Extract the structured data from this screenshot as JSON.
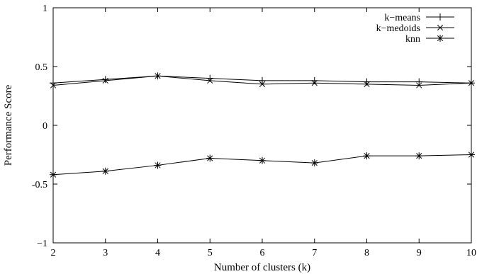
{
  "chart_data": {
    "type": "line",
    "xlabel": "Number of clusters (k)",
    "ylabel": "Performance Score",
    "x": [
      2,
      3,
      4,
      5,
      6,
      7,
      8,
      9,
      10
    ],
    "xlim": [
      2,
      10
    ],
    "ylim": [
      -1,
      1
    ],
    "xticks": [
      "2",
      "3",
      "4",
      "5",
      "6",
      "7",
      "8",
      "9",
      "10"
    ],
    "yticks": [
      {
        "value": 1,
        "label": "1"
      },
      {
        "value": 0.5,
        "label": "0.5"
      },
      {
        "value": 0,
        "label": "0"
      },
      {
        "value": -0.5,
        "label": "-0.5"
      },
      {
        "value": -1,
        "label": "−1"
      }
    ],
    "grid": false,
    "legend_position": "top-right",
    "series": [
      {
        "name": "k−means",
        "marker": "plus",
        "values": [
          0.36,
          0.39,
          0.42,
          0.4,
          0.38,
          0.38,
          0.37,
          0.37,
          0.36
        ]
      },
      {
        "name": "k−medoids",
        "marker": "cross",
        "values": [
          0.34,
          0.38,
          0.42,
          0.38,
          0.35,
          0.36,
          0.35,
          0.34,
          0.36
        ]
      },
      {
        "name": "knn",
        "marker": "star",
        "values": [
          -0.42,
          -0.39,
          -0.34,
          -0.28,
          -0.3,
          -0.32,
          -0.26,
          -0.26,
          -0.25
        ]
      }
    ]
  }
}
